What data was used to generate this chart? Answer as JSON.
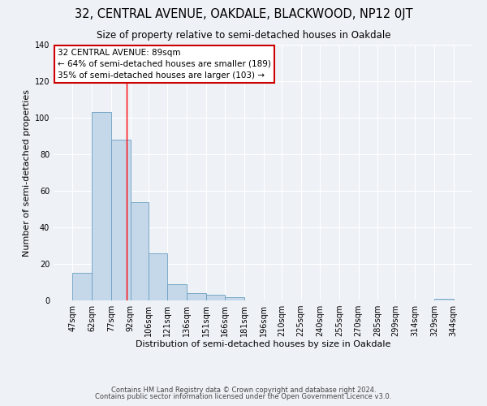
{
  "title": "32, CENTRAL AVENUE, OAKDALE, BLACKWOOD, NP12 0JT",
  "subtitle": "Size of property relative to semi-detached houses in Oakdale",
  "xlabel": "Distribution of semi-detached houses by size in Oakdale",
  "ylabel": "Number of semi-detached properties",
  "bin_edges": [
    47,
    62,
    77,
    92,
    106,
    121,
    136,
    151,
    166,
    181,
    196,
    210,
    225,
    240,
    255,
    270,
    285,
    299,
    314,
    329,
    344
  ],
  "counts": [
    15,
    103,
    88,
    54,
    26,
    9,
    4,
    3,
    2,
    0,
    0,
    0,
    0,
    0,
    0,
    0,
    0,
    0,
    0,
    1
  ],
  "bar_color": "#c5d8ea",
  "bar_edge_color": "#6a9fc0",
  "red_line_x": 89,
  "ylim": [
    0,
    140
  ],
  "yticks": [
    0,
    20,
    40,
    60,
    80,
    100,
    120,
    140
  ],
  "annotation_title": "32 CENTRAL AVENUE: 89sqm",
  "annotation_line1": "← 64% of semi-detached houses are smaller (189)",
  "annotation_line2": "35% of semi-detached houses are larger (103) →",
  "footer_line1": "Contains HM Land Registry data © Crown copyright and database right 2024.",
  "footer_line2": "Contains public sector information licensed under the Open Government Licence v3.0.",
  "background_color": "#eef2f7",
  "plot_bg_color": "#eef2f7",
  "grid_color": "#ffffff",
  "annotation_box_color": "#ffffff",
  "annotation_box_edge_color": "#cc0000",
  "title_fontsize": 10.5,
  "subtitle_fontsize": 8.5,
  "axis_label_fontsize": 8,
  "tick_fontsize": 7,
  "annotation_fontsize": 7.5,
  "footer_fontsize": 6
}
